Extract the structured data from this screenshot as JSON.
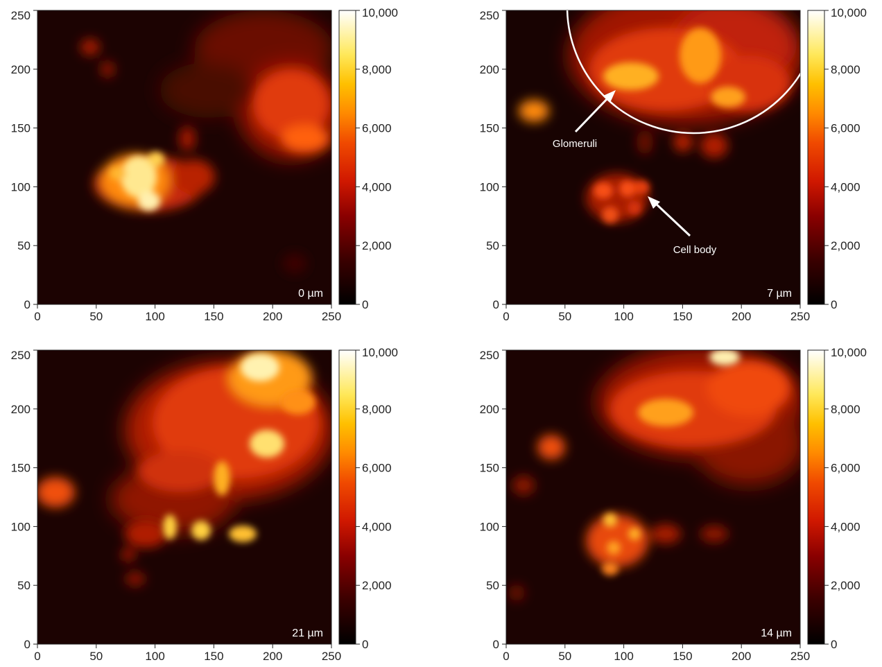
{
  "figure": {
    "axis_ticks": [
      "0",
      "50",
      "100",
      "150",
      "200",
      "250"
    ],
    "colorbar_ticks": [
      "0",
      "2,000",
      "4,000",
      "6,000",
      "8,000",
      "10,000"
    ],
    "colorbar_colors": [
      "#000000",
      "#3a0000",
      "#7a0000",
      "#c01000",
      "#ee3a00",
      "#ff7a00",
      "#ffb400",
      "#ffe040",
      "#fff5a0",
      "#ffffff"
    ],
    "panels": [
      {
        "id": "top-left",
        "depth_label": "0 µm",
        "annotations": []
      },
      {
        "id": "top-right",
        "depth_label": "7 µm",
        "annotations": [
          {
            "text": "Glomeruli"
          },
          {
            "text": "Cell body"
          }
        ]
      },
      {
        "id": "bottom-left",
        "depth_label": "21 µm",
        "annotations": []
      },
      {
        "id": "bottom-right",
        "depth_label": "14 µm",
        "annotations": []
      }
    ]
  }
}
